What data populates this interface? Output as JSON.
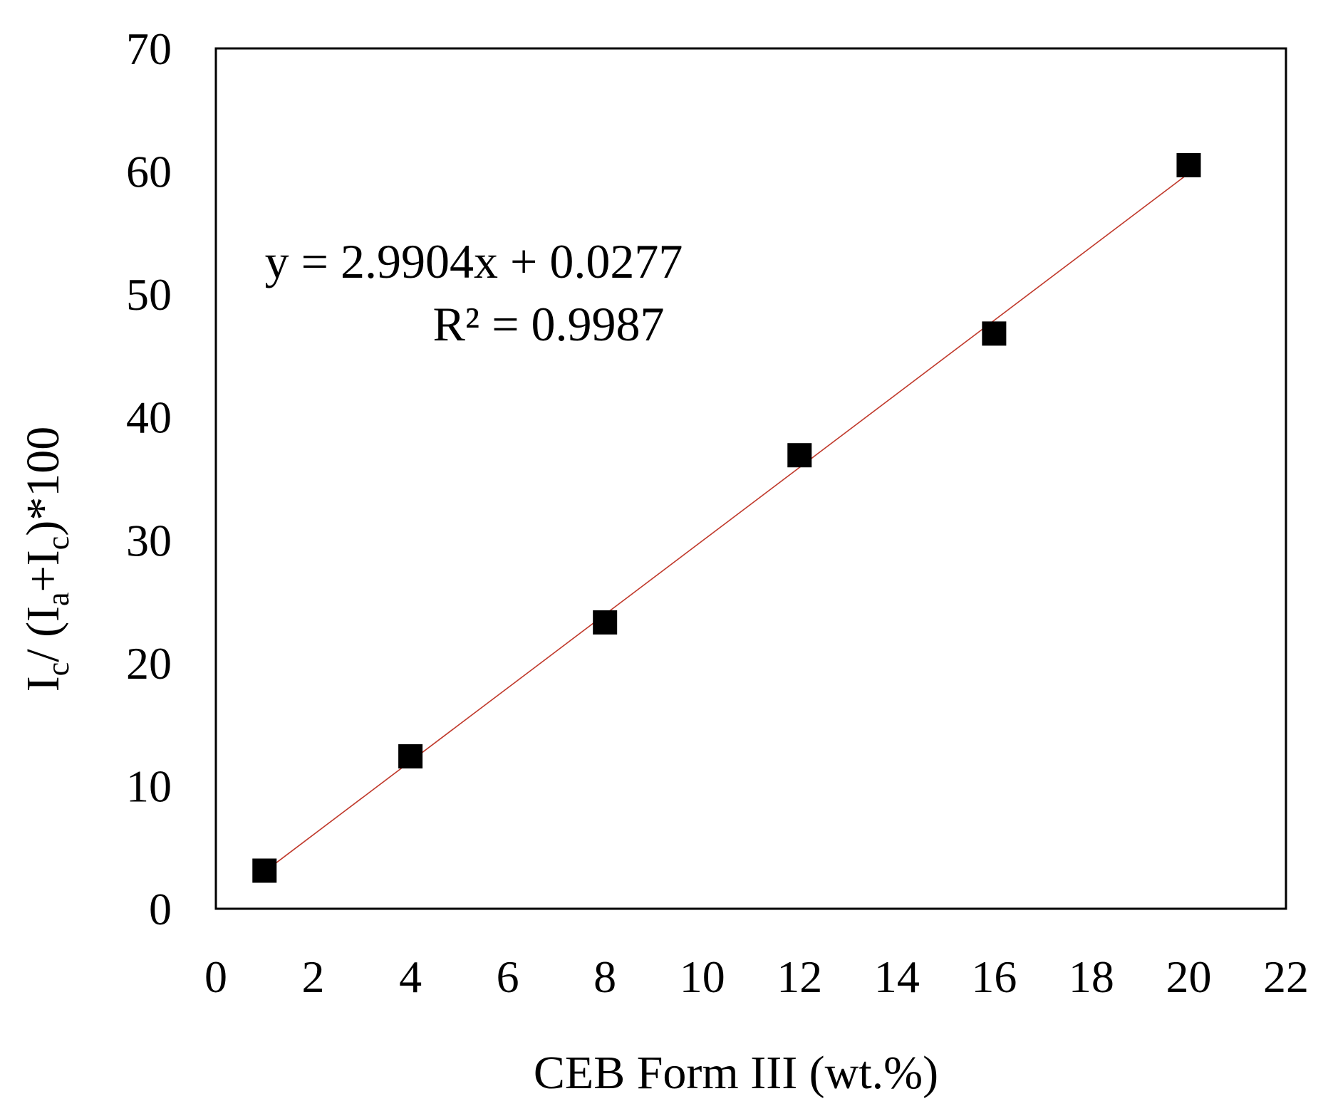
{
  "chart_data": {
    "type": "scatter",
    "title": "",
    "xlabel": "CEB Form III (wt.%)",
    "ylabel": {
      "parts": [
        {
          "text": "I",
          "sub": false
        },
        {
          "text": "c",
          "sub": true
        },
        {
          "text": "/ (I",
          "sub": false
        },
        {
          "text": "a",
          "sub": true
        },
        {
          "text": "+I",
          "sub": false
        },
        {
          "text": "c",
          "sub": true
        },
        {
          "text": ")*100",
          "sub": false
        }
      ]
    },
    "xlim": [
      0,
      22
    ],
    "ylim": [
      0,
      70
    ],
    "xticks": [
      0,
      2,
      4,
      6,
      8,
      10,
      12,
      14,
      16,
      18,
      20,
      22
    ],
    "yticks": [
      0,
      10,
      20,
      30,
      40,
      50,
      60,
      70
    ],
    "grid": false,
    "legend": "none",
    "series": [
      {
        "marker": "square",
        "color": "#000000",
        "x": [
          1,
          4,
          8,
          12,
          16,
          20
        ],
        "y": [
          3.1,
          12.4,
          23.3,
          36.9,
          46.8,
          60.5
        ]
      }
    ],
    "trendline": {
      "type": "linear",
      "slope": 2.9904,
      "intercept": 0.0277,
      "x_range": [
        1,
        20
      ],
      "color": "#c0392b"
    },
    "annotations": {
      "equation": "y = 2.9904x + 0.0277",
      "r_squared": "R² = 0.9987"
    }
  }
}
